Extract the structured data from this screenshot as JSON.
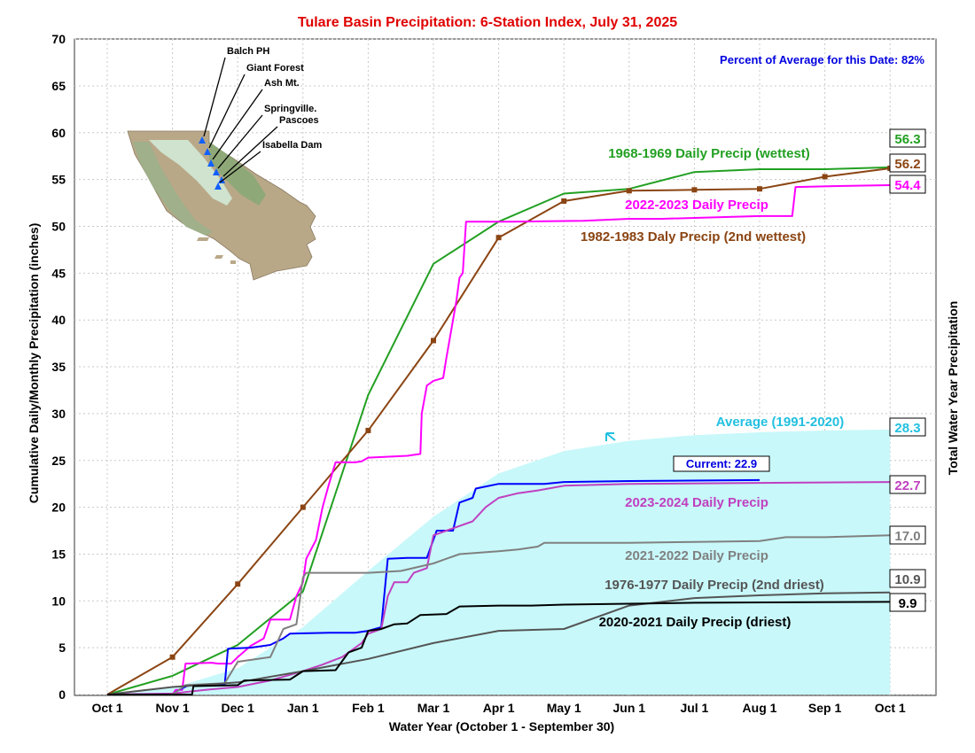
{
  "chart_data": {
    "type": "line",
    "title": "Tulare Basin Precipitation: 6-Station Index, July 31, 2025",
    "subtitle": "Percent of Average for this Date: 82%",
    "xlabel": "Water Year (October 1 - September 30)",
    "ylabel": "Cumulative Daily/Monthly Precipitation (inches)",
    "y2label": "Total Water Year Precipitation",
    "x_ticks": [
      "Oct 1",
      "Nov 1",
      "Dec 1",
      "Jan 1",
      "Feb 1",
      "Mar 1",
      "Apr 1",
      "May 1",
      "Jun 1",
      "Jul 1",
      "Aug 1",
      "Sep 1",
      "Oct 1"
    ],
    "y_ticks": [
      "0",
      "5",
      "10",
      "15",
      "20",
      "25",
      "30",
      "35",
      "40",
      "45",
      "50",
      "55",
      "60",
      "65",
      "70"
    ],
    "ylim": [
      0,
      70
    ],
    "xlim_months": [
      0,
      12
    ],
    "grid": true,
    "x_unit": "months since Oct 1",
    "stations": [
      "Balch PH",
      "Giant Forest",
      "Ash Mt.",
      "Springville.",
      "Pascoes",
      "Isabella Dam"
    ],
    "series": [
      {
        "name": "Average (1991-2020)",
        "label": "Average (1991-2020)",
        "total_label": "28.3",
        "style": "area",
        "color": "#c8f8fa",
        "label_color": "#22c0e0",
        "points": [
          [
            0,
            0
          ],
          [
            1,
            0.7
          ],
          [
            2,
            2.8
          ],
          [
            3,
            7.2
          ],
          [
            4,
            13.2
          ],
          [
            5,
            19.0
          ],
          [
            6,
            23.6
          ],
          [
            7,
            26.0
          ],
          [
            8,
            27.1
          ],
          [
            9,
            27.7
          ],
          [
            10,
            28.0
          ],
          [
            11,
            28.2
          ],
          [
            12,
            28.3
          ]
        ]
      },
      {
        "name": "1968-1969 Daily Precip (wettest)",
        "label": "1968-1969 Daily Precip (wettest)",
        "total_label": "56.3",
        "color": "#22a022",
        "points": [
          [
            0,
            0
          ],
          [
            1,
            2.0
          ],
          [
            2,
            5.3
          ],
          [
            3,
            11.0
          ],
          [
            4,
            32.0
          ],
          [
            5,
            46.0
          ],
          [
            6,
            50.5
          ],
          [
            7,
            53.5
          ],
          [
            8,
            54.0
          ],
          [
            9,
            55.8
          ],
          [
            10,
            56.1
          ],
          [
            11,
            56.1
          ],
          [
            12,
            56.3
          ]
        ]
      },
      {
        "name": "1982-1983 Daly Precip (2nd wettest)",
        "label": "1982-1983 Daly Precip (2nd wettest)",
        "total_label": "56.2",
        "color": "#8b4513",
        "markers": true,
        "points": [
          [
            0,
            0
          ],
          [
            1,
            4.0
          ],
          [
            2,
            11.8
          ],
          [
            3,
            20.0
          ],
          [
            4,
            28.2
          ],
          [
            5,
            37.8
          ],
          [
            6,
            48.8
          ],
          [
            7,
            52.7
          ],
          [
            8,
            53.8
          ],
          [
            9,
            53.9
          ],
          [
            10,
            54.0
          ],
          [
            11,
            55.3
          ],
          [
            12,
            56.2
          ]
        ]
      },
      {
        "name": "2022-2023 Daily Precip",
        "label": "2022-2023 Daily Precip",
        "total_label": "54.4",
        "color": "#ff00ff",
        "points": [
          [
            0,
            0
          ],
          [
            1.0,
            0
          ],
          [
            1.05,
            0.5
          ],
          [
            1.15,
            0.5
          ],
          [
            1.2,
            3.3
          ],
          [
            1.6,
            3.4
          ],
          [
            1.7,
            3.3
          ],
          [
            1.9,
            3.3
          ],
          [
            2.0,
            4.0
          ],
          [
            2.2,
            5.2
          ],
          [
            2.4,
            6.0
          ],
          [
            2.5,
            8.0
          ],
          [
            2.8,
            8.0
          ],
          [
            2.9,
            10.5
          ],
          [
            3.0,
            12.0
          ],
          [
            3.05,
            14.5
          ],
          [
            3.2,
            16.5
          ],
          [
            3.3,
            20.0
          ],
          [
            3.4,
            22.5
          ],
          [
            3.5,
            24.8
          ],
          [
            3.8,
            24.8
          ],
          [
            3.9,
            24.9
          ],
          [
            4.0,
            25.3
          ],
          [
            4.6,
            25.5
          ],
          [
            4.8,
            25.7
          ],
          [
            4.82,
            30.0
          ],
          [
            4.9,
            33.0
          ],
          [
            5.0,
            33.5
          ],
          [
            5.15,
            33.8
          ],
          [
            5.2,
            36.0
          ],
          [
            5.35,
            42.0
          ],
          [
            5.4,
            44.5
          ],
          [
            5.45,
            45.0
          ],
          [
            5.5,
            50.5
          ],
          [
            6.2,
            50.5
          ],
          [
            7.3,
            50.6
          ],
          [
            8.0,
            50.8
          ],
          [
            8.5,
            50.8
          ],
          [
            10.0,
            51.1
          ],
          [
            10.5,
            51.1
          ],
          [
            10.55,
            54.2
          ],
          [
            11.2,
            54.3
          ],
          [
            12.0,
            54.4
          ]
        ]
      },
      {
        "name": "Current",
        "label": "Current: 22.9",
        "color": "#0000ff",
        "points": [
          [
            1.0,
            0
          ],
          [
            1.1,
            0.5
          ],
          [
            1.25,
            1.0
          ],
          [
            1.8,
            1.0
          ],
          [
            1.85,
            4.9
          ],
          [
            2.2,
            5.0
          ],
          [
            2.5,
            5.3
          ],
          [
            2.7,
            6.0
          ],
          [
            2.8,
            6.5
          ],
          [
            3.4,
            6.6
          ],
          [
            3.8,
            6.6
          ],
          [
            4.0,
            6.8
          ],
          [
            4.2,
            7.2
          ],
          [
            4.3,
            14.5
          ],
          [
            4.6,
            14.6
          ],
          [
            4.9,
            14.6
          ],
          [
            5.05,
            17.5
          ],
          [
            5.3,
            17.5
          ],
          [
            5.4,
            20.5
          ],
          [
            5.6,
            21.0
          ],
          [
            5.65,
            22.0
          ],
          [
            6.0,
            22.5
          ],
          [
            6.7,
            22.5
          ],
          [
            7.0,
            22.7
          ],
          [
            8.0,
            22.8
          ],
          [
            10.0,
            22.9
          ]
        ]
      },
      {
        "name": "2023-2024 Daily Precip",
        "label": "2023-2024 Daily Precip",
        "total_label": "22.7",
        "color": "#c040c0",
        "points": [
          [
            0,
            0
          ],
          [
            1.0,
            0.1
          ],
          [
            1.5,
            0.5
          ],
          [
            2.0,
            0.8
          ],
          [
            2.5,
            1.5
          ],
          [
            3.0,
            2.5
          ],
          [
            3.3,
            3.2
          ],
          [
            3.6,
            4.0
          ],
          [
            3.9,
            5.5
          ],
          [
            4.0,
            6.5
          ],
          [
            4.2,
            7.0
          ],
          [
            4.3,
            10.5
          ],
          [
            4.4,
            12.0
          ],
          [
            4.6,
            12.0
          ],
          [
            4.7,
            13.0
          ],
          [
            4.9,
            13.5
          ],
          [
            5.0,
            17.0
          ],
          [
            5.2,
            17.5
          ],
          [
            5.6,
            18.5
          ],
          [
            5.8,
            20.0
          ],
          [
            6.0,
            21.0
          ],
          [
            6.3,
            21.5
          ],
          [
            6.6,
            21.8
          ],
          [
            7.0,
            22.3
          ],
          [
            8.0,
            22.5
          ],
          [
            12.0,
            22.7
          ]
        ]
      },
      {
        "name": "2021-2022 Daily Precip",
        "label": "2021-2022 Daily Precip",
        "total_label": "17.0",
        "color": "#808080",
        "points": [
          [
            0,
            0
          ],
          [
            1.0,
            0
          ],
          [
            1.2,
            1.0
          ],
          [
            1.8,
            1.2
          ],
          [
            2.0,
            3.5
          ],
          [
            2.5,
            4.0
          ],
          [
            2.7,
            7.0
          ],
          [
            2.9,
            7.5
          ],
          [
            3.0,
            12.5
          ],
          [
            3.05,
            13.0
          ],
          [
            4.0,
            13.0
          ],
          [
            4.5,
            13.2
          ],
          [
            5.0,
            14.0
          ],
          [
            5.2,
            14.5
          ],
          [
            5.4,
            15.0
          ],
          [
            6.0,
            15.3
          ],
          [
            6.3,
            15.5
          ],
          [
            6.6,
            15.8
          ],
          [
            6.7,
            16.2
          ],
          [
            8.0,
            16.2
          ],
          [
            9.0,
            16.3
          ],
          [
            10.0,
            16.4
          ],
          [
            10.4,
            16.8
          ],
          [
            11.0,
            16.8
          ],
          [
            12.0,
            17.0
          ]
        ]
      },
      {
        "name": "1976-1977 Daily Precip (2nd driest)",
        "label": "1976-1977 Daily Precip (2nd driest)",
        "total_label": "10.9",
        "color": "#555555",
        "points": [
          [
            0,
            0
          ],
          [
            1,
            0.8
          ],
          [
            2,
            1.3
          ],
          [
            3,
            2.5
          ],
          [
            4,
            3.8
          ],
          [
            5,
            5.5
          ],
          [
            6,
            6.8
          ],
          [
            7,
            7.0
          ],
          [
            8,
            9.5
          ],
          [
            9,
            10.3
          ],
          [
            10,
            10.6
          ],
          [
            11,
            10.8
          ],
          [
            12,
            10.9
          ]
        ]
      },
      {
        "name": "2020-2021 Daily Precip (driest)",
        "label": "2020-2021 Daily Precip (driest)",
        "total_label": "9.9",
        "color": "#000000",
        "points": [
          [
            0,
            0
          ],
          [
            1.3,
            0
          ],
          [
            1.32,
            0.9
          ],
          [
            2.0,
            1.0
          ],
          [
            2.1,
            1.5
          ],
          [
            2.8,
            1.6
          ],
          [
            3.0,
            2.5
          ],
          [
            3.5,
            2.6
          ],
          [
            3.7,
            4.5
          ],
          [
            3.9,
            5.0
          ],
          [
            4.0,
            6.8
          ],
          [
            4.2,
            7.0
          ],
          [
            4.4,
            7.5
          ],
          [
            4.6,
            7.6
          ],
          [
            4.8,
            8.5
          ],
          [
            5.2,
            8.6
          ],
          [
            5.4,
            9.4
          ],
          [
            6.0,
            9.5
          ],
          [
            6.5,
            9.5
          ],
          [
            7.0,
            9.6
          ],
          [
            8.0,
            9.7
          ],
          [
            9.0,
            9.8
          ],
          [
            12.0,
            9.9
          ]
        ]
      }
    ]
  }
}
